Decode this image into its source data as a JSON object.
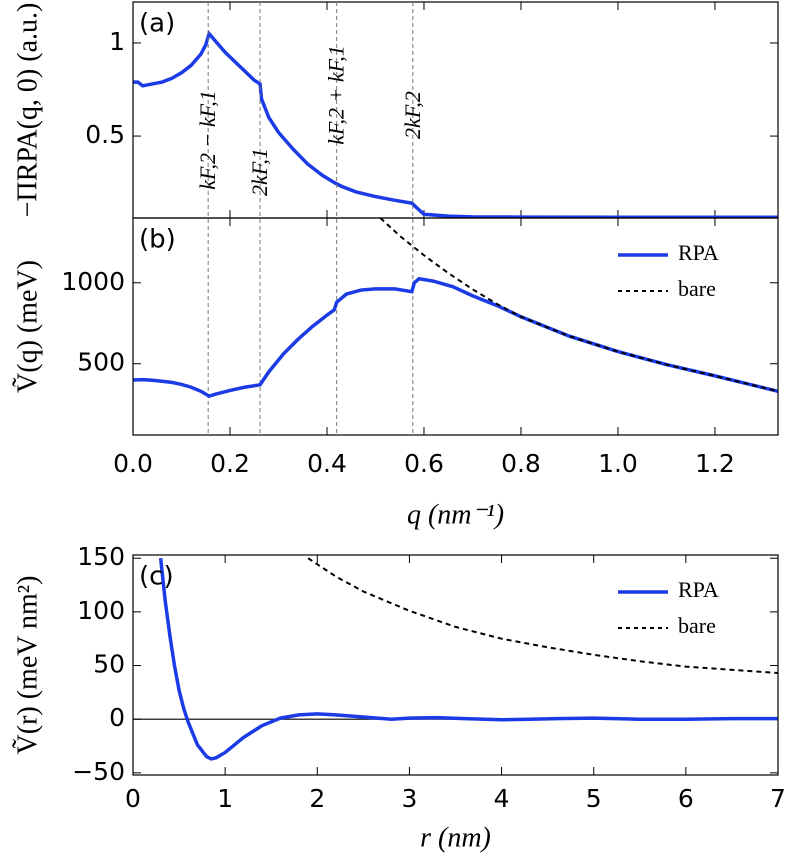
{
  "chart_data": [
    {
      "type": "line",
      "panel_label": "(a)",
      "ylabel": "−ΠRPA(q, 0) (a.u.)",
      "xlim": [
        0,
        1.33
      ],
      "ylim": [
        0.06,
        1.22
      ],
      "yticks": [
        0.5,
        1
      ],
      "series": [
        {
          "name": "RPA",
          "color": "#1b3be6",
          "style": "solid",
          "x": [
            0,
            0.01,
            0.02,
            0.04,
            0.06,
            0.08,
            0.1,
            0.12,
            0.14,
            0.15,
            0.157,
            0.17,
            0.19,
            0.21,
            0.23,
            0.25,
            0.262,
            0.265,
            0.28,
            0.3,
            0.33,
            0.36,
            0.39,
            0.415,
            0.43,
            0.46,
            0.5,
            0.54,
            0.575,
            0.585,
            0.6,
            0.65,
            0.7,
            0.8,
            1.0,
            1.2,
            1.33
          ],
          "values": [
            0.79,
            0.79,
            0.77,
            0.78,
            0.79,
            0.81,
            0.84,
            0.88,
            0.94,
            0.99,
            1.05,
            1.01,
            0.95,
            0.9,
            0.85,
            0.8,
            0.78,
            0.7,
            0.6,
            0.52,
            0.43,
            0.35,
            0.29,
            0.25,
            0.23,
            0.2,
            0.175,
            0.155,
            0.14,
            0.115,
            0.08,
            0.07,
            0.066,
            0.065,
            0.064,
            0.064,
            0.064
          ]
        }
      ],
      "vlines": [
        {
          "x": 0.155,
          "label": "kF,2 − kF,1"
        },
        {
          "x": 0.262,
          "label": "2kF,1"
        },
        {
          "x": 0.42,
          "label": "kF,2 + kF,1"
        },
        {
          "x": 0.577,
          "label": "2kF,2"
        }
      ]
    },
    {
      "type": "line",
      "panel_label": "(b)",
      "ylabel": "Ṽ(q) (meV)",
      "xlabel": "q (nm⁻¹)",
      "xlim": [
        0,
        1.33
      ],
      "ylim": [
        60,
        1400
      ],
      "yticks": [
        500,
        1000
      ],
      "xticks": [
        {
          "value": 0,
          "label": "0.0"
        },
        {
          "value": 0.2,
          "label": "0.2"
        },
        {
          "value": 0.4,
          "label": "0.4"
        },
        {
          "value": 0.6,
          "label": "0.6"
        },
        {
          "value": 0.8,
          "label": "0.8"
        },
        {
          "value": 1,
          "label": "1.0"
        },
        {
          "value": 1.2,
          "label": "1.2"
        }
      ],
      "legend": "upper right",
      "series": [
        {
          "name": "RPA",
          "color": "#1b3be6",
          "style": "solid",
          "x": [
            0,
            0.02,
            0.04,
            0.06,
            0.08,
            0.1,
            0.12,
            0.14,
            0.157,
            0.17,
            0.2,
            0.23,
            0.262,
            0.28,
            0.31,
            0.34,
            0.37,
            0.4,
            0.415,
            0.42,
            0.44,
            0.47,
            0.5,
            0.54,
            0.575,
            0.58,
            0.59,
            0.62,
            0.66,
            0.7,
            0.75,
            0.8,
            0.9,
            1.0,
            1.1,
            1.2,
            1.33
          ],
          "values": [
            400,
            402,
            398,
            392,
            385,
            372,
            355,
            330,
            300,
            312,
            335,
            355,
            370,
            450,
            560,
            650,
            730,
            800,
            833,
            880,
            930,
            955,
            962,
            962,
            945,
            1000,
            1025,
            1010,
            975,
            920,
            860,
            790,
            670,
            575,
            495,
            425,
            330
          ]
        },
        {
          "name": "bare",
          "color": "#000000",
          "style": "dashed",
          "x": [
            0.51,
            0.55,
            0.6,
            0.65,
            0.7,
            0.75,
            0.8,
            0.9,
            1.0,
            1.1,
            1.2,
            1.33
          ],
          "values": [
            1400,
            1290,
            1170,
            1060,
            960,
            870,
            790,
            670,
            575,
            495,
            425,
            330
          ]
        }
      ]
    },
    {
      "type": "line",
      "panel_label": "(c)",
      "ylabel": "Ṽ(r) (meV nm²)",
      "xlabel": "r (nm)",
      "xlim": [
        0,
        7
      ],
      "ylim": [
        -52,
        153
      ],
      "yticks": [
        {
          "value": -50,
          "label": "−50"
        },
        0,
        50,
        100,
        150
      ],
      "xticks": [
        0,
        1,
        2,
        3,
        4,
        5,
        6,
        7
      ],
      "zero_line": true,
      "legend": "upper right",
      "series": [
        {
          "name": "RPA",
          "color": "#1b3be6",
          "style": "solid",
          "x": [
            0.3,
            0.35,
            0.4,
            0.45,
            0.5,
            0.55,
            0.6,
            0.7,
            0.8,
            0.85,
            0.9,
            1.0,
            1.1,
            1.2,
            1.4,
            1.6,
            1.8,
            2.0,
            2.2,
            2.5,
            2.8,
            3.0,
            3.3,
            3.6,
            4.0,
            4.3,
            4.6,
            5.0,
            5.5,
            6.0,
            6.5,
            7.0
          ],
          "values": [
            150,
            110,
            78,
            50,
            27,
            10,
            -3,
            -24,
            -35,
            -37,
            -36,
            -31,
            -24,
            -17,
            -6,
            1,
            4,
            5,
            4,
            2,
            0,
            1,
            1.5,
            0.5,
            -0.5,
            0,
            0.5,
            1,
            0,
            0,
            0.5,
            0.5
          ]
        },
        {
          "name": "bare",
          "color": "#000000",
          "style": "dashed",
          "x": [
            1.9,
            2.2,
            2.5,
            3,
            3.5,
            4,
            4.5,
            5,
            5.5,
            6,
            6.5,
            7
          ],
          "values": [
            150,
            133,
            119,
            101,
            86,
            75,
            67,
            60,
            54,
            49,
            46,
            43
          ]
        }
      ]
    }
  ]
}
